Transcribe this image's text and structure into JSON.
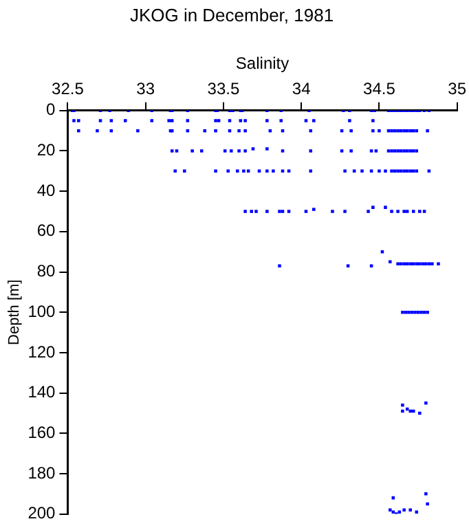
{
  "chart_data": {
    "type": "scatter",
    "title": "JKOG in December, 1981",
    "xlabel": "Salinity",
    "ylabel": "Depth [m]",
    "xlim": [
      32.5,
      35
    ],
    "xticks": [
      32.5,
      33,
      33.5,
      34,
      34.5,
      35
    ],
    "ylim": [
      200,
      0
    ],
    "yticks": [
      0,
      20,
      40,
      60,
      80,
      100,
      120,
      140,
      160,
      180,
      200
    ],
    "grid": false,
    "legend": false,
    "marker": "square",
    "series": [
      {
        "color": "#0000ff",
        "x": [
          32.53,
          32.54,
          32.71,
          32.77,
          32.89,
          33.04,
          33.16,
          33.17,
          33.27,
          33.45,
          33.46,
          33.54,
          33.55,
          33.56,
          33.61,
          33.62,
          33.78,
          33.87,
          34.05,
          34.27,
          34.31,
          34.45,
          34.47,
          34.56,
          34.58,
          34.6,
          34.62,
          34.64,
          34.66,
          34.68,
          34.7,
          34.72,
          34.74,
          34.76,
          34.79,
          34.82,
          32.54,
          32.57,
          32.71,
          32.78,
          32.87,
          33.04,
          33.15,
          33.17,
          33.27,
          33.45,
          33.47,
          33.54,
          33.61,
          33.64,
          33.78,
          33.87,
          34.03,
          34.08,
          34.31,
          34.46,
          32.57,
          32.69,
          32.78,
          32.95,
          33.16,
          33.17,
          33.27,
          33.38,
          33.45,
          33.54,
          33.6,
          33.64,
          33.8,
          33.88,
          34.06,
          34.26,
          34.32,
          34.46,
          34.5,
          34.56,
          34.58,
          34.6,
          34.62,
          34.64,
          34.66,
          34.68,
          34.7,
          34.72,
          34.74,
          34.81,
          33.17,
          33.2,
          33.3,
          33.36,
          33.51,
          33.55,
          33.6,
          33.64,
          33.69,
          33.78,
          33.88,
          34.06,
          34.26,
          34.32,
          34.45,
          34.48,
          34.56,
          34.58,
          34.6,
          34.62,
          34.64,
          34.66,
          34.68,
          34.7,
          34.72,
          34.74,
          33.19,
          33.25,
          33.45,
          33.53,
          33.59,
          33.63,
          33.66,
          33.73,
          33.78,
          33.82,
          33.88,
          33.92,
          34.06,
          34.28,
          34.34,
          34.39,
          34.45,
          34.5,
          34.54,
          34.58,
          34.6,
          34.62,
          34.64,
          34.66,
          34.68,
          34.7,
          34.72,
          34.74,
          34.82,
          33.64,
          33.68,
          33.71,
          33.78,
          33.86,
          33.88,
          33.92,
          34.03,
          34.08,
          34.2,
          34.28,
          34.43,
          34.46,
          34.54,
          34.58,
          34.62,
          34.66,
          34.68,
          34.72,
          34.76,
          34.79,
          33.86,
          34.3,
          34.45,
          34.52,
          34.57,
          34.62,
          34.64,
          34.66,
          34.68,
          34.7,
          34.72,
          34.74,
          34.76,
          34.78,
          34.8,
          34.82,
          34.84,
          34.88,
          34.65,
          34.67,
          34.69,
          34.71,
          34.73,
          34.75,
          34.77,
          34.79,
          34.81,
          34.65,
          34.65,
          34.68,
          34.7,
          34.72,
          34.76,
          34.8,
          34.57,
          34.59,
          34.61,
          34.63,
          34.66,
          34.7,
          34.74,
          34.59,
          34.8,
          34.81
        ],
        "values": [
          0,
          0,
          0,
          0,
          0,
          0,
          0,
          0,
          0,
          0,
          0,
          0,
          0,
          0,
          0,
          0,
          0,
          0,
          0,
          0,
          0,
          0,
          0,
          0,
          0,
          0,
          0,
          0,
          0,
          0,
          0,
          0,
          0,
          0,
          0,
          0,
          5,
          5,
          5,
          5,
          5,
          5,
          5,
          5,
          5,
          5,
          5,
          5,
          5,
          5,
          5,
          5,
          5,
          5,
          5,
          5,
          10,
          10,
          10,
          10,
          10,
          10,
          10,
          10,
          10,
          10,
          10,
          10,
          10,
          10,
          10,
          10,
          10,
          10,
          10,
          10,
          10,
          10,
          10,
          10,
          10,
          10,
          10,
          10,
          10,
          10,
          20,
          20,
          20,
          20,
          20,
          20,
          20,
          20,
          19,
          19,
          20,
          20,
          20,
          20,
          20,
          20,
          20,
          20,
          20,
          20,
          20,
          20,
          20,
          20,
          20,
          20,
          30,
          30,
          30,
          30,
          30,
          30,
          30,
          30,
          30,
          30,
          30,
          30,
          30,
          30,
          30,
          30,
          30,
          30,
          30,
          30,
          30,
          30,
          30,
          30,
          30,
          30,
          30,
          30,
          30,
          50,
          50,
          50,
          50,
          50,
          50,
          50,
          50,
          49,
          50,
          50,
          50,
          48,
          48,
          50,
          50,
          50,
          50,
          50,
          50,
          50,
          77,
          77,
          77,
          70,
          75,
          76,
          76,
          76,
          76,
          76,
          76,
          76,
          76,
          76,
          76,
          76,
          76,
          76,
          100,
          100,
          100,
          100,
          100,
          100,
          100,
          100,
          100,
          146,
          149,
          148,
          149,
          149,
          150,
          145,
          198,
          199,
          200,
          199,
          198,
          198,
          199,
          192,
          190,
          195
        ]
      }
    ]
  }
}
